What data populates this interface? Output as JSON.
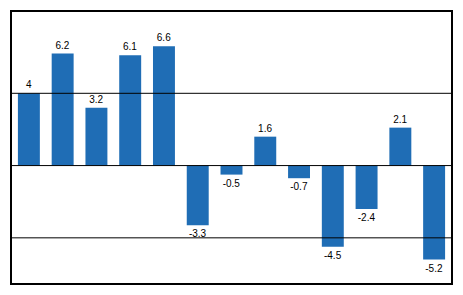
{
  "chart_data": {
    "type": "bar",
    "categories": [
      null,
      null,
      null,
      null,
      null,
      null,
      null,
      null,
      null,
      null,
      null,
      null,
      null
    ],
    "values": [
      4.0,
      6.2,
      3.2,
      6.1,
      6.6,
      -3.3,
      -0.5,
      1.6,
      -0.7,
      -4.5,
      -2.4,
      2.1,
      -5.2
    ],
    "color": "#1F6DB5",
    "ylim": [
      -6.5,
      8.5
    ],
    "yticks": [],
    "hlines": [
      4,
      0,
      -4
    ],
    "data_labels": true,
    "tick_labels": false,
    "grid": false
  }
}
